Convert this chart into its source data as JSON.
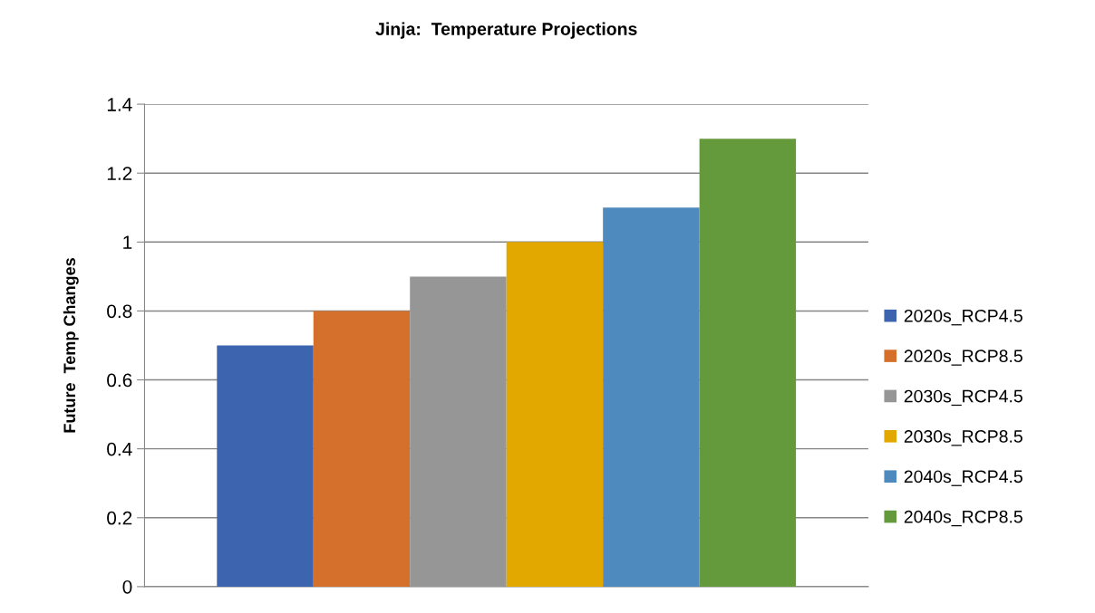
{
  "chart_data": {
    "type": "bar",
    "title": "Jinja:  Temperature Projections",
    "ylabel": "Future  Temp Changes",
    "categories": [
      null
    ],
    "series": [
      {
        "name": "2020s_RCP4.5",
        "color": "#3d64ae",
        "values": [
          0.7
        ]
      },
      {
        "name": "2020s_RCP8.5",
        "color": "#d4702c",
        "values": [
          0.8
        ]
      },
      {
        "name": "2030s_RCP4.5",
        "color": "#969696",
        "values": [
          0.9
        ]
      },
      {
        "name": "2030s_RCP8.5",
        "color": "#e3a800",
        "values": [
          1.0
        ]
      },
      {
        "name": "2040s_RCP4.5",
        "color": "#4f8abf",
        "values": [
          1.1
        ]
      },
      {
        "name": "2040s_RCP8.5",
        "color": "#659a3c",
        "values": [
          1.3
        ]
      }
    ],
    "ylim": [
      0,
      1.4
    ],
    "yticks": [
      0,
      0.2,
      0.4,
      0.6,
      0.8,
      1,
      1.2,
      1.4
    ],
    "grid": "y",
    "legend": "right",
    "tick_labels": "y"
  }
}
